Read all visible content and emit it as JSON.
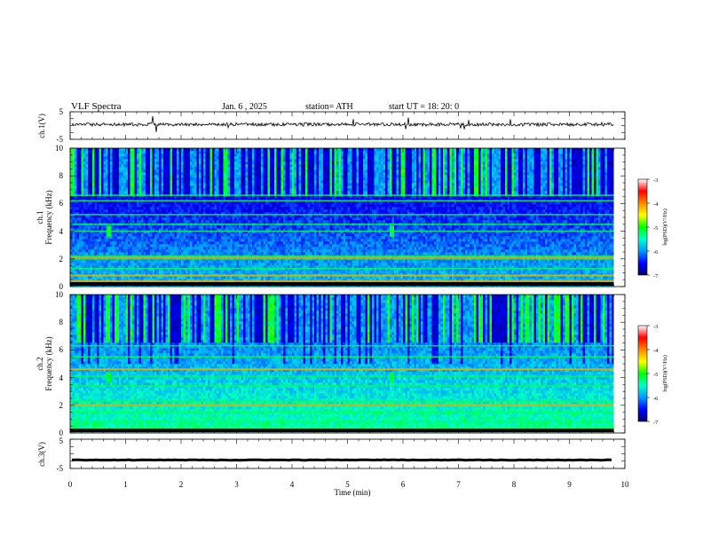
{
  "header": {
    "title": "VLF  Spectra",
    "date": "Jan. 6  , 2025",
    "station": "station= ATH",
    "start": "start  UT  =    18: 20: 0"
  },
  "chart_data": {
    "type": "heatmap",
    "title": "VLF  Spectra",
    "xlabel": "Time  (min)",
    "xlim": [
      0,
      10
    ],
    "x_ticks": [
      "0",
      "1",
      "2",
      "3",
      "4",
      "5",
      "6",
      "7",
      "8",
      "9",
      "10"
    ],
    "data_end_min": 9.8,
    "panels": [
      {
        "name": "ch1-waveform",
        "type": "line",
        "ylabel": "ch.1(V)",
        "ylim": [
          -5,
          5
        ],
        "y_ticks": [
          "5",
          "-5"
        ],
        "baseline_v": 0.4,
        "noise_amplitude_v": 1.2
      },
      {
        "name": "ch1-spectrogram",
        "type": "heatmap",
        "ylabel_line1": "ch.1",
        "ylabel_line2": "Frequency  (kHz)",
        "ylim": [
          0,
          10
        ],
        "y_ticks": [
          "0",
          "2",
          "4",
          "6",
          "8",
          "10"
        ],
        "colorbar": {
          "label": "log(PSD)(V²/Hz)",
          "range": [
            -7,
            -3
          ],
          "ticks": [
            "-3",
            "-4",
            "-5",
            "-6",
            "-7"
          ]
        },
        "bright_bands_khz": [
          0.2,
          0.8,
          1.3,
          2.0,
          2.2,
          4.0,
          4.5,
          5.2,
          6.2,
          6.6
        ],
        "hot_bands_khz": [
          0.4,
          0.8,
          2.1
        ],
        "bursts_min": [
          0.7,
          5.8
        ],
        "burst_khz": [
          3.6,
          4.4
        ]
      },
      {
        "name": "ch2-spectrogram",
        "type": "heatmap",
        "ylabel_line1": "ch.2",
        "ylabel_line2": "Frequency  (kHz)",
        "ylim": [
          0,
          10
        ],
        "y_ticks": [
          "0",
          "2",
          "4",
          "6",
          "8",
          "10"
        ],
        "colorbar": {
          "label": "log(PSD)(V²/Hz)",
          "range": [
            -7,
            -3
          ],
          "ticks": [
            "-3",
            "-4",
            "-5",
            "-6",
            "-7"
          ]
        },
        "bright_bands_khz": [
          0.3,
          0.8,
          1.5,
          2.0,
          2.3,
          3.4,
          4.1,
          4.6,
          5.5,
          6.3
        ],
        "hot_bands_khz": [
          2.0,
          4.6
        ],
        "bursts_min": [
          0.7,
          5.8
        ],
        "burst_khz": [
          3.6,
          4.4
        ]
      },
      {
        "name": "ch3-waveform",
        "type": "line",
        "ylabel": "ch.3(V)",
        "ylim": [
          -5,
          5
        ],
        "y_ticks": [
          "5",
          "-5"
        ],
        "baseline_v": -2.1,
        "noise_amplitude_v": 0.2
      }
    ]
  },
  "colors": {
    "ink": "#000000",
    "colormap": [
      "#000066",
      "#0000ff",
      "#0099ff",
      "#00ffcc",
      "#00ff00",
      "#ffff00",
      "#ff8800",
      "#ff0000",
      "#ffffff"
    ]
  }
}
